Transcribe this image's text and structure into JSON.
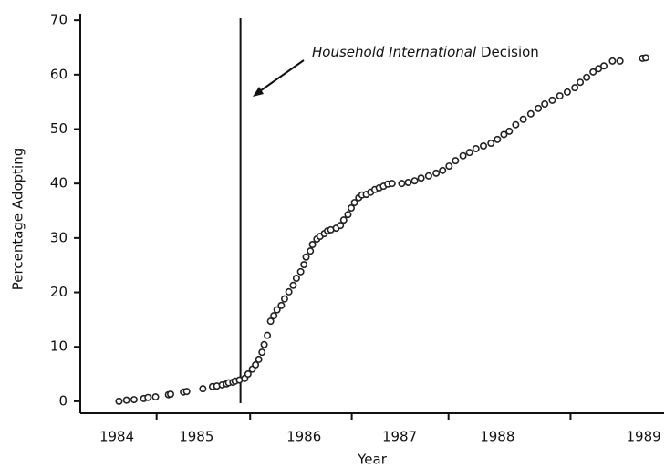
{
  "chart_data": {
    "type": "scatter",
    "xlabel": "Year",
    "ylabel": "Percentage Adopting",
    "annotation_italic": "Household International",
    "annotation": "Decision",
    "event_x": 1985.86,
    "color": "#222222",
    "x": [
      1984.73,
      1984.8,
      1984.87,
      1984.96,
      1985.0,
      1985.07,
      1985.19,
      1985.21,
      1985.33,
      1985.36,
      1985.51,
      1985.6,
      1985.64,
      1985.69,
      1985.73,
      1985.75,
      1985.79,
      1985.81,
      1985.85,
      1985.9,
      1985.93,
      1985.97,
      1986.0,
      1986.03,
      1986.06,
      1986.08,
      1986.11,
      1986.14,
      1986.17,
      1986.2,
      1986.24,
      1986.27,
      1986.31,
      1986.35,
      1986.38,
      1986.42,
      1986.45,
      1986.47,
      1986.51,
      1986.53,
      1986.57,
      1986.6,
      1986.64,
      1986.67,
      1986.7,
      1986.75,
      1986.79,
      1986.82,
      1986.86,
      1986.89,
      1986.92,
      1986.96,
      1986.99,
      1987.03,
      1987.07,
      1987.11,
      1987.15,
      1987.19,
      1987.23,
      1987.27,
      1987.36,
      1987.42,
      1987.48,
      1987.54,
      1987.61,
      1987.68,
      1987.74,
      1987.8,
      1987.86,
      1987.93,
      1987.99,
      1988.05,
      1988.12,
      1988.19,
      1988.25,
      1988.31,
      1988.36,
      1988.42,
      1988.49,
      1988.56,
      1988.63,
      1988.69,
      1988.76,
      1988.83,
      1988.9,
      1988.97,
      1989.02,
      1989.08,
      1989.14,
      1989.19,
      1989.24,
      1989.32,
      1989.39,
      1989.6,
      1989.63
    ],
    "values": [
      0,
      0.2,
      0.3,
      0.5,
      0.7,
      0.8,
      1.2,
      1.3,
      1.7,
      1.8,
      2.3,
      2.7,
      2.8,
      3.0,
      3.2,
      3.4,
      3.5,
      3.7,
      3.9,
      4.2,
      5.0,
      5.9,
      6.7,
      7.7,
      9.0,
      10.4,
      12.1,
      14.7,
      15.7,
      16.8,
      17.6,
      18.8,
      20.1,
      21.3,
      22.6,
      23.8,
      25.1,
      26.5,
      27.6,
      28.8,
      29.8,
      30.3,
      30.8,
      31.3,
      31.5,
      31.8,
      32.3,
      33.3,
      34.3,
      35.5,
      36.5,
      37.4,
      37.9,
      38.0,
      38.4,
      38.9,
      39.2,
      39.5,
      39.9,
      40.0,
      40.0,
      40.2,
      40.5,
      41.0,
      41.4,
      41.9,
      42.4,
      43.2,
      44.2,
      45.1,
      45.7,
      46.4,
      46.9,
      47.4,
      48.1,
      49.0,
      49.6,
      50.8,
      51.8,
      52.8,
      53.8,
      54.6,
      55.3,
      56.1,
      56.8,
      57.6,
      58.6,
      59.5,
      60.5,
      61.1,
      61.6,
      62.5,
      62.5,
      63.0,
      63.1
    ],
    "xlim": [
      1984.37,
      1989.8
    ],
    "xticks": [
      {
        "value": 1984.71,
        "label": "1984"
      },
      {
        "value": 1985.45,
        "label": "1985"
      },
      {
        "value": 1986.45,
        "label": "1986"
      },
      {
        "value": 1987.34,
        "label": "1987"
      },
      {
        "value": 1988.25,
        "label": "1988"
      },
      {
        "value": 1989.61,
        "label": "1989"
      }
    ],
    "ylim": [
      -2.2,
      71.2
    ],
    "yticks": [
      0,
      10,
      20,
      30,
      40,
      50,
      60,
      70
    ]
  }
}
